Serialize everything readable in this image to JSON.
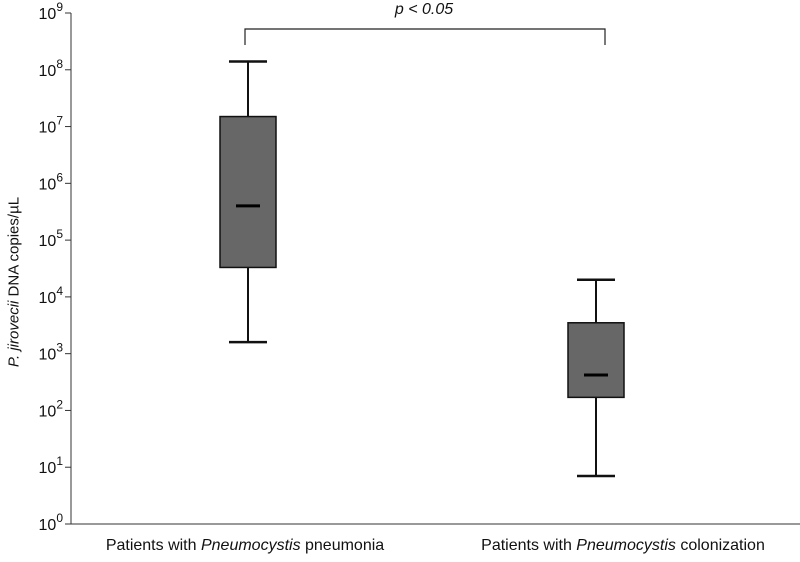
{
  "chart_data": {
    "type": "box",
    "title": "",
    "ylabel": {
      "italic_part": "P. jirovecii",
      "rest": " DNA copies/µL"
    },
    "yscale": "log10",
    "ylim": [
      1,
      1000000000
    ],
    "yticks": [
      {
        "base": "10",
        "exp": "0",
        "value": 1
      },
      {
        "base": "10",
        "exp": "1",
        "value": 10
      },
      {
        "base": "10",
        "exp": "2",
        "value": 100
      },
      {
        "base": "10",
        "exp": "3",
        "value": 1000
      },
      {
        "base": "10",
        "exp": "4",
        "value": 10000
      },
      {
        "base": "10",
        "exp": "5",
        "value": 100000
      },
      {
        "base": "10",
        "exp": "6",
        "value": 1000000
      },
      {
        "base": "10",
        "exp": "7",
        "value": 10000000
      },
      {
        "base": "10",
        "exp": "8",
        "value": 100000000
      },
      {
        "base": "10",
        "exp": "9",
        "value": 1000000000
      }
    ],
    "categories": [
      {
        "prefix": "Patients with ",
        "italic": "Pneumocystis",
        "suffix": " pneumonia"
      },
      {
        "prefix": "Patients with ",
        "italic": "Pneumocystis",
        "suffix": " colonization"
      }
    ],
    "boxes": [
      {
        "whisker_low": 1600,
        "q1": 33000,
        "median": 400000,
        "q3": 15000000,
        "whisker_high": 140000000
      },
      {
        "whisker_low": 7,
        "q1": 170,
        "median": 420,
        "q3": 3500,
        "whisker_high": 20000
      }
    ],
    "box_color": "#676767",
    "annotation": {
      "text": "p < 0.05",
      "between": [
        0,
        1
      ]
    },
    "grid": false
  }
}
